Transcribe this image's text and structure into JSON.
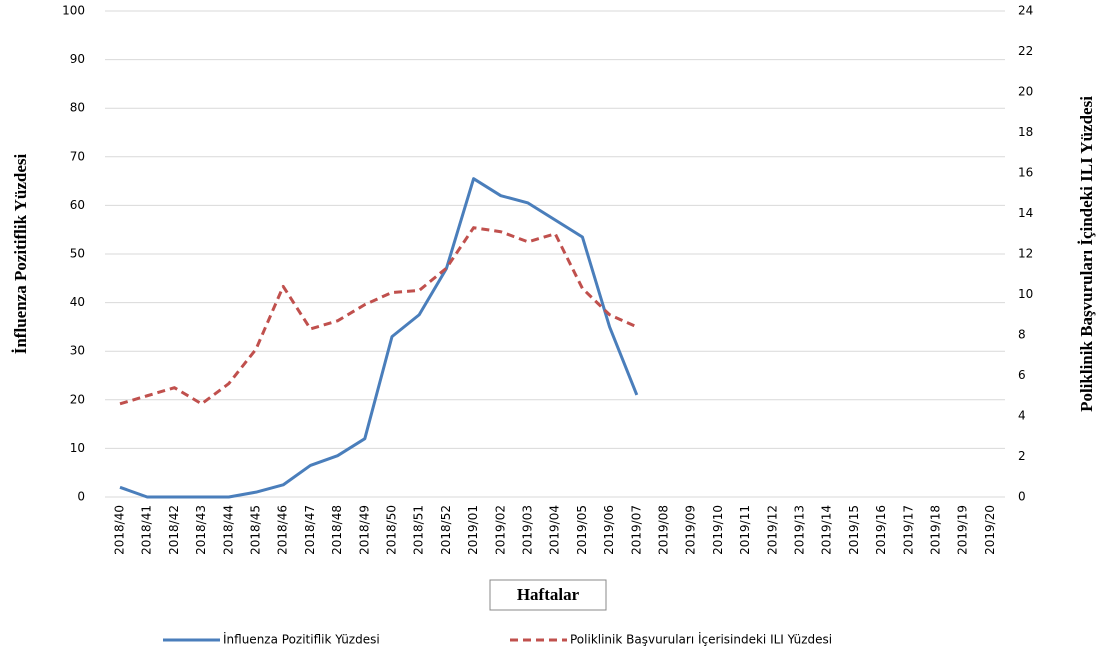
{
  "chart_data": {
    "type": "line",
    "x_label": "Haftalar",
    "y_label": "İnfluenza Pozitiflik Yüzdesi",
    "y2_label": "Poliklinik Başvuruları İçindeki ILI Yüzdesi",
    "categories": [
      "2018/40",
      "2018/41",
      "2018/42",
      "2018/43",
      "2018/44",
      "2018/45",
      "2018/46",
      "2018/47",
      "2018/48",
      "2018/49",
      "2018/50",
      "2018/51",
      "2018/52",
      "2019/01",
      "2019/02",
      "2019/03",
      "2019/04",
      "2019/05",
      "2019/06",
      "2019/07",
      "2019/08",
      "2019/09",
      "2019/10",
      "2019/11",
      "2019/12",
      "2019/13",
      "2019/14",
      "2019/15",
      "2019/16",
      "2019/17",
      "2019/18",
      "2019/19",
      "2019/20"
    ],
    "series": [
      {
        "name": "İnfluenza Pozitiflik Yüzdesi",
        "color": "#4a7ebb",
        "dashed": false,
        "values": [
          2,
          0,
          0,
          0,
          0,
          1,
          2.5,
          6.5,
          8.5,
          12,
          33,
          37.5,
          47,
          65.5,
          62,
          60.5,
          57,
          53.5,
          35,
          21,
          null,
          null,
          null,
          null,
          null,
          null,
          null,
          null,
          null,
          null,
          null,
          null,
          null
        ]
      },
      {
        "name": "Poliklinik Başvuruları İçerisindeki ILI Yüzdesi",
        "color": "#c0504d",
        "dashed": true,
        "axis": "y2",
        "values": [
          4.6,
          5.0,
          5.4,
          4.6,
          5.6,
          7.3,
          10.4,
          8.3,
          8.7,
          9.5,
          10.1,
          10.2,
          11.3,
          13.3,
          13.1,
          12.6,
          13.0,
          10.3,
          9.0,
          8.4,
          null,
          null,
          null,
          null,
          null,
          null,
          null,
          null,
          null,
          null,
          null,
          null,
          null
        ]
      }
    ],
    "ylim": [
      0,
      100
    ],
    "yticks": [
      0,
      10,
      20,
      30,
      40,
      50,
      60,
      70,
      80,
      90,
      100
    ],
    "y2lim": [
      0,
      24
    ],
    "y2ticks": [
      0,
      2,
      4,
      6,
      8,
      10,
      12,
      14,
      16,
      18,
      20,
      22,
      24
    ],
    "grid": true
  }
}
